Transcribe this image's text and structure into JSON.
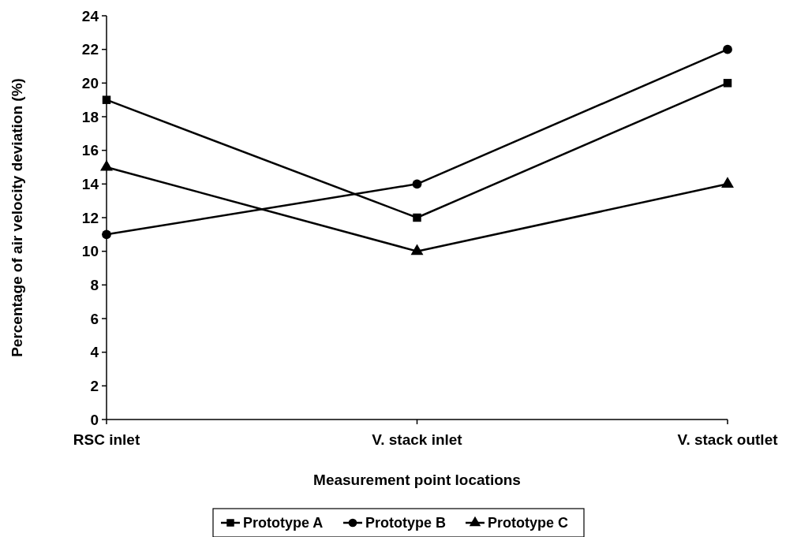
{
  "chart_data": {
    "type": "line",
    "xlabel": "Measurement point locations",
    "ylabel": "Percentage of air velocity deviation (%)",
    "categories": [
      "RSC inlet",
      "V. stack inlet",
      "V. stack outlet"
    ],
    "series": [
      {
        "name": "Prototype A",
        "color": "#000000",
        "marker": "square",
        "values": [
          19,
          12,
          20
        ]
      },
      {
        "name": "Prototype B",
        "color": "#000000",
        "marker": "circle",
        "values": [
          11,
          14,
          22
        ]
      },
      {
        "name": "Prototype C",
        "color": "#000000",
        "marker": "triangle",
        "values": [
          15,
          10,
          14
        ]
      }
    ],
    "ylim": [
      0,
      24
    ],
    "yticks": [
      0,
      2,
      4,
      6,
      8,
      10,
      12,
      14,
      16,
      18,
      20,
      22,
      24
    ],
    "grid": false,
    "legend": "bottom",
    "line_style": "solid"
  }
}
